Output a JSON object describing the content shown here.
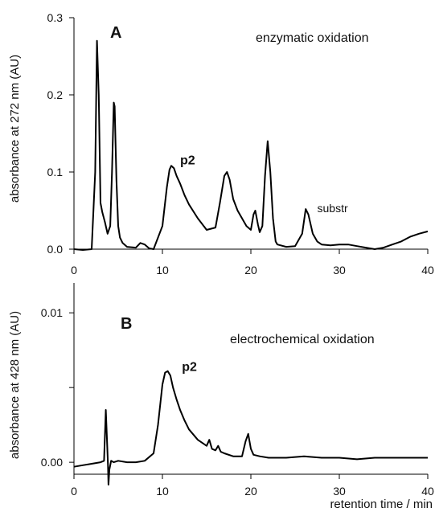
{
  "chart_data": [
    {
      "type": "line",
      "panel_label": "A",
      "annotation": "enzymatic oxidation",
      "ylabel": "absorbance at 272 nm (AU)",
      "xlabel": "",
      "xlim": [
        0,
        40
      ],
      "ylim": [
        0,
        0.3
      ],
      "xticks": [
        0,
        10,
        20,
        30,
        40
      ],
      "xtick_labels": [
        "0",
        "10",
        "20",
        "30",
        "40"
      ],
      "yticks": [
        0,
        0.1,
        0.2,
        0.3
      ],
      "ytick_labels": [
        "0.0",
        "0.1",
        "0.2",
        "0.3"
      ],
      "peak_labels": [
        {
          "text": "p2",
          "x": 12,
          "y": 0.11,
          "bold": true
        },
        {
          "text": "substr",
          "x": 27.5,
          "y": 0.048,
          "bold": false
        }
      ],
      "series": [
        {
          "x": [
            0,
            1,
            2,
            2.4,
            2.6,
            2.8,
            3,
            3.2,
            3.5,
            3.8,
            4.1,
            4.3,
            4.5,
            4.6,
            4.8,
            5,
            5.2,
            5.5,
            6,
            7,
            7.5,
            8,
            8.5,
            9,
            10,
            10.5,
            10.8,
            11,
            11.3,
            11.6,
            12,
            12.5,
            13,
            14,
            15,
            16,
            16.5,
            17,
            17.3,
            17.6,
            18,
            18.5,
            19,
            19.5,
            20,
            20.3,
            20.5,
            20.8,
            21,
            21.3,
            21.6,
            21.9,
            22.2,
            22.5,
            22.8,
            23,
            24,
            25,
            25.8,
            26.2,
            26.5,
            27,
            27.5,
            28,
            29,
            30,
            31,
            32,
            33,
            34,
            35,
            36,
            37,
            38,
            39,
            40
          ],
          "y": [
            0,
            -0.001,
            0,
            0.1,
            0.27,
            0.2,
            0.06,
            0.048,
            0.035,
            0.02,
            0.03,
            0.1,
            0.19,
            0.185,
            0.09,
            0.03,
            0.015,
            0.008,
            0.003,
            0.002,
            0.008,
            0.006,
            0.001,
            0,
            0.03,
            0.08,
            0.103,
            0.108,
            0.105,
            0.095,
            0.085,
            0.07,
            0.058,
            0.04,
            0.025,
            0.028,
            0.06,
            0.095,
            0.1,
            0.09,
            0.065,
            0.05,
            0.04,
            0.03,
            0.025,
            0.045,
            0.05,
            0.032,
            0.022,
            0.03,
            0.095,
            0.14,
            0.1,
            0.04,
            0.01,
            0.006,
            0.003,
            0.004,
            0.02,
            0.052,
            0.045,
            0.02,
            0.01,
            0.006,
            0.005,
            0.006,
            0.006,
            0.004,
            0.002,
            0,
            0.002,
            0.006,
            0.01,
            0.016,
            0.02,
            0.023
          ]
        }
      ]
    },
    {
      "type": "line",
      "panel_label": "B",
      "annotation": "electrochemical oxidation",
      "ylabel": "absorbance at 428 nm (AU)",
      "xlabel": "retention time / min",
      "xlim": [
        0,
        40
      ],
      "ylim": [
        -0.0008,
        0.012
      ],
      "xticks": [
        0,
        10,
        20,
        30,
        40
      ],
      "xtick_labels": [
        "0",
        "10",
        "20",
        "30",
        "40"
      ],
      "yticks": [
        0,
        0.005,
        0.01
      ],
      "ytick_labels": [
        "0.00",
        "",
        "0.01"
      ],
      "peak_labels": [
        {
          "text": "p2",
          "x": 12.2,
          "y": 0.0061,
          "bold": true
        }
      ],
      "series": [
        {
          "x": [
            0,
            1,
            2,
            3,
            3.4,
            3.6,
            3.7,
            3.8,
            3.85,
            3.9,
            4,
            4.2,
            4.5,
            5,
            6,
            7,
            8,
            9,
            9.5,
            10,
            10.3,
            10.6,
            10.9,
            11.2,
            11.6,
            12,
            12.5,
            13,
            14,
            15,
            15.3,
            15.6,
            16,
            16.3,
            16.6,
            17,
            18,
            19,
            19.4,
            19.7,
            20,
            20.3,
            21,
            22,
            24,
            26,
            28,
            30,
            32,
            34,
            36,
            38,
            40
          ],
          "y": [
            -0.0003,
            -0.0002,
            -0.0001,
            0,
            0.0001,
            0.0035,
            0.002,
            0.0005,
            -0.0002,
            -0.0015,
            -0.0005,
            0.0001,
            0,
            0.0001,
            0,
            0,
            0.0001,
            0.0006,
            0.0025,
            0.0052,
            0.006,
            0.0061,
            0.0058,
            0.005,
            0.0042,
            0.0035,
            0.0028,
            0.0022,
            0.0015,
            0.0011,
            0.0015,
            0.0009,
            0.0008,
            0.0011,
            0.0007,
            0.0006,
            0.0004,
            0.0004,
            0.0014,
            0.0019,
            0.0009,
            0.0005,
            0.0004,
            0.0003,
            0.0003,
            0.0004,
            0.0003,
            0.0003,
            0.0002,
            0.0003,
            0.0003,
            0.0003,
            0.0003
          ]
        }
      ]
    }
  ]
}
